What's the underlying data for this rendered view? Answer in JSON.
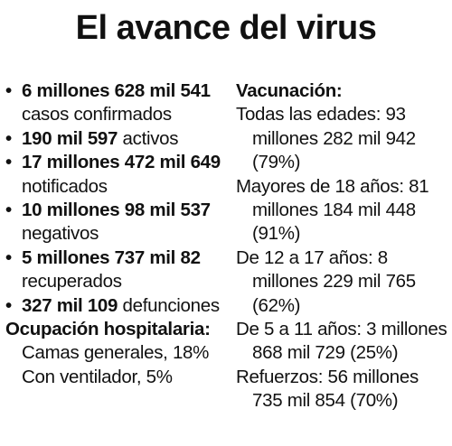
{
  "title": "El avance del virus",
  "stats": [
    {
      "value": "6 millones 628 mil 541",
      "label": "casos confirmados"
    },
    {
      "value": "190 mil 597",
      "label": "activos"
    },
    {
      "value": "17 millones 472 mil 649",
      "label": "notificados"
    },
    {
      "value": "10 millones 98 mil 537",
      "label": "negativos"
    },
    {
      "value": "5 millones 737 mil 82",
      "label": "recuperados"
    },
    {
      "value": "327 mil 109",
      "label": "defunciones"
    }
  ],
  "hospital": {
    "heading": "Ocupación hospitalaria:",
    "items": [
      "Camas generales, 18%",
      "Con ventilador, 5%"
    ]
  },
  "vaccination": {
    "heading": "Vacunación:",
    "items": [
      "Todas las edades: 93 millones 282 mil 942 (79%)",
      "Mayores de 18 años: 81 millones 184 mil 448 (91%)",
      "De 12 a 17 años: 8 millones 229 mil 765 (62%)",
      "De 5 a 11 años: 3 millones 868 mil 729 (25%)",
      "Refuerzos: 56 millones 735 mil 854 (70%)"
    ]
  }
}
